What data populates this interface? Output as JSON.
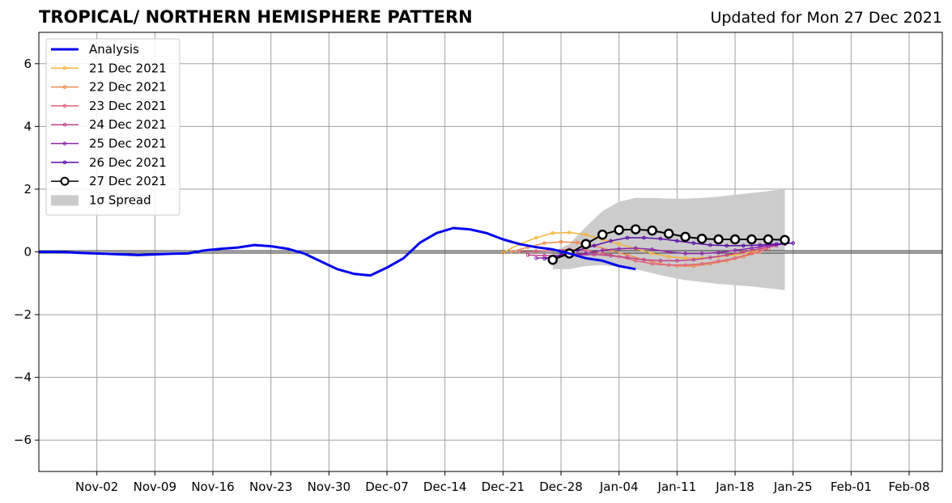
{
  "header": {
    "title": "TROPICAL/ NORTHERN HEMISPHERE PATTERN",
    "updated": "Updated for Mon 27 Dec 2021"
  },
  "chart_data": {
    "type": "line",
    "title": "TROPICAL/ NORTHERN HEMISPHERE PATTERN",
    "xlabel": "",
    "ylabel": "",
    "x_start": "2021-10-26",
    "xlim": [
      "2021-10-26",
      "2022-02-12"
    ],
    "ylim": [
      -7,
      7
    ],
    "x_ticks": [
      "Nov-02",
      "Nov-09",
      "Nov-16",
      "Nov-23",
      "Nov-30",
      "Dec-07",
      "Dec-14",
      "Dec-21",
      "Dec-28",
      "Jan-04",
      "Jan-11",
      "Jan-18",
      "Jan-25",
      "Feb-01",
      "Feb-08"
    ],
    "y_ticks": [
      -6,
      -4,
      -2,
      0,
      2,
      4,
      6
    ],
    "y_tick_labels": [
      "−6",
      "−4",
      "−2",
      "0",
      "2",
      "4",
      "6"
    ],
    "grid": true,
    "legend_position": "top-left",
    "analysis": {
      "name": "Analysis",
      "color": "#0000ee",
      "points": [
        [
          0,
          0.0
        ],
        [
          2,
          0.0
        ],
        [
          4,
          -0.02
        ],
        [
          6,
          -0.04
        ],
        [
          8,
          -0.06
        ],
        [
          10,
          -0.08
        ],
        [
          12,
          -0.1
        ],
        [
          14,
          -0.08
        ],
        [
          16,
          -0.06
        ],
        [
          18,
          -0.05
        ],
        [
          20,
          0.05
        ],
        [
          22,
          0.1
        ],
        [
          24,
          0.14
        ],
        [
          26,
          0.22
        ],
        [
          28,
          0.18
        ],
        [
          30,
          0.1
        ],
        [
          32,
          -0.05
        ],
        [
          34,
          -0.3
        ],
        [
          36,
          -0.55
        ],
        [
          38,
          -0.7
        ],
        [
          40,
          -0.75
        ],
        [
          42,
          -0.5
        ],
        [
          44,
          -0.2
        ],
        [
          46,
          0.3
        ],
        [
          48,
          0.6
        ],
        [
          50,
          0.76
        ],
        [
          52,
          0.72
        ],
        [
          54,
          0.6
        ],
        [
          56,
          0.4
        ],
        [
          58,
          0.25
        ],
        [
          60,
          0.15
        ],
        [
          62,
          0.08
        ],
        [
          64,
          -0.05
        ],
        [
          66,
          -0.2
        ],
        [
          68,
          -0.28
        ],
        [
          70,
          -0.45
        ],
        [
          72,
          -0.55
        ]
      ]
    },
    "forecasts": [
      {
        "name": "21 Dec 2021",
        "color": "#f5b43a",
        "start": 56,
        "values": [
          -0.02,
          0.25,
          0.45,
          0.6,
          0.62,
          0.55,
          0.4,
          0.25,
          0.1,
          -0.05,
          -0.15,
          -0.2,
          -0.2,
          -0.15,
          -0.1,
          0.0,
          0.1
        ]
      },
      {
        "name": "22 Dec 2021",
        "color": "#ee8b52",
        "start": 57,
        "values": [
          0.0,
          0.15,
          0.28,
          0.32,
          0.3,
          0.2,
          0.05,
          -0.1,
          -0.25,
          -0.38,
          -0.45,
          -0.45,
          -0.38,
          -0.28,
          -0.15,
          0.0
        ]
      },
      {
        "name": "23 Dec 2021",
        "color": "#e0657a",
        "start": 58,
        "values": [
          0.0,
          0.02,
          0.05,
          0.08,
          0.05,
          -0.05,
          -0.15,
          -0.28,
          -0.38,
          -0.42,
          -0.42,
          -0.38,
          -0.3,
          -0.2,
          -0.05,
          0.1
        ]
      },
      {
        "name": "24 Dec 2021",
        "color": "#c0428a",
        "start": 59,
        "values": [
          -0.1,
          -0.12,
          -0.12,
          -0.1,
          -0.08,
          -0.12,
          -0.18,
          -0.25,
          -0.28,
          -0.28,
          -0.25,
          -0.18,
          -0.1,
          0.0,
          0.1,
          0.2
        ]
      },
      {
        "name": "25 Dec 2021",
        "color": "#8e24a8",
        "start": 60,
        "values": [
          -0.2,
          -0.18,
          -0.1,
          -0.05,
          0.05,
          0.1,
          0.12,
          0.08,
          0.0,
          -0.05,
          -0.05,
          -0.02,
          0.05,
          0.12,
          0.2,
          0.25
        ]
      },
      {
        "name": "26 Dec 2021",
        "color": "#5a0ca8",
        "start": 61,
        "values": [
          -0.22,
          -0.1,
          0.05,
          0.2,
          0.35,
          0.45,
          0.45,
          0.42,
          0.35,
          0.28,
          0.22,
          0.2,
          0.2,
          0.22,
          0.25,
          0.28
        ]
      },
      {
        "name": "27 Dec 2021",
        "color": "#000000",
        "start": 62,
        "markers": "open-circle",
        "values": [
          -0.25,
          -0.05,
          0.25,
          0.55,
          0.7,
          0.72,
          0.68,
          0.58,
          0.48,
          0.42,
          0.4,
          0.4,
          0.4,
          0.4,
          0.38
        ]
      }
    ],
    "spread": {
      "name": "1σ Spread",
      "color": "#cccccc",
      "x": [
        62,
        64,
        66,
        68,
        70,
        72,
        74,
        76,
        78,
        80,
        82,
        84,
        86,
        88,
        90
      ],
      "upper": [
        0.0,
        0.25,
        0.8,
        1.3,
        1.6,
        1.72,
        1.72,
        1.7,
        1.7,
        1.72,
        1.76,
        1.82,
        1.88,
        1.94,
        2.0
      ],
      "lower": [
        -0.55,
        -0.55,
        -0.45,
        -0.42,
        -0.48,
        -0.55,
        -0.68,
        -0.8,
        -0.9,
        -0.96,
        -1.02,
        -1.06,
        -1.1,
        -1.16,
        -1.22
      ]
    }
  }
}
